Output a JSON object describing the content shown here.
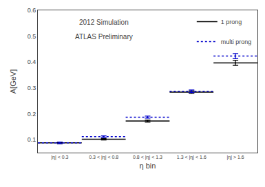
{
  "chart_data": {
    "type": "line",
    "annotations": [
      "2012 Simulation",
      "ATLAS Preliminary"
    ],
    "xlabel": "η bin",
    "ylabel": "A[GeV]",
    "categories": [
      "|η| < 0.3",
      "0.3 < |η| < 0.8",
      "0.8 < |η| < 1.3",
      "1.3 < |η| < 1.6",
      "|η| > 1.6"
    ],
    "ylim": [
      0.05,
      0.6
    ],
    "yticks": [
      0.1,
      0.2,
      0.3,
      0.4,
      0.5,
      0.6
    ],
    "grid": false,
    "legend": "upper right",
    "series": [
      {
        "name": "1 prong",
        "color": "#000000",
        "line_style": "solid",
        "values": [
          0.088,
          0.102,
          0.172,
          0.284,
          0.397
        ],
        "errors": [
          0.003,
          0.003,
          0.004,
          0.005,
          0.01
        ]
      },
      {
        "name": "multi prong",
        "color": "#0000cc",
        "line_style": "dotted",
        "values": [
          0.088,
          0.112,
          0.187,
          0.287,
          0.423
        ],
        "errors": [
          0.003,
          0.003,
          0.004,
          0.005,
          0.01
        ]
      }
    ]
  }
}
